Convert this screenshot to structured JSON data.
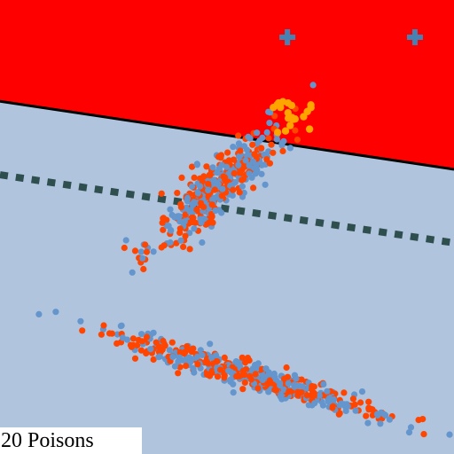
{
  "caption": "20 Poisons",
  "colors": {
    "positive_region": "#ff0000",
    "negative_region": "#b0c4de",
    "class_a": "#6495cd",
    "class_b": "#ff4500",
    "poison": "#ffa500",
    "target": "#4682b4",
    "clean_boundary": "#000000",
    "poisoned_boundary": "#2f4f4f"
  },
  "chart_data": {
    "type": "scatter",
    "title": "",
    "xlabel": "",
    "ylabel": "",
    "xlim": [
      0,
      1
    ],
    "ylim": [
      0,
      1
    ],
    "grid": false,
    "axes_visible": false,
    "regions": [
      {
        "name": "positive",
        "side": "above",
        "boundary": "clean_boundary",
        "color_key": "positive_region"
      },
      {
        "name": "negative",
        "side": "below",
        "boundary": "clean_boundary",
        "color_key": "negative_region"
      }
    ],
    "decision_boundaries": [
      {
        "id": "clean",
        "style": "solid",
        "points": [
          [
            0.0,
            0.777
          ],
          [
            1.0,
            0.627
          ]
        ],
        "color_key": "clean_boundary"
      },
      {
        "id": "poisoned",
        "style": "dotted",
        "points": [
          [
            0.0,
            0.615
          ],
          [
            1.0,
            0.465
          ]
        ],
        "color_key": "poisoned_boundary"
      }
    ],
    "targets": [
      {
        "x": 0.633,
        "y": 0.918,
        "marker": "plus"
      },
      {
        "x": 0.914,
        "y": 0.918,
        "marker": "plus"
      }
    ],
    "clusters": [
      {
        "id": "upper",
        "center": [
          0.48,
          0.59
        ],
        "direction": [
          0.73,
          0.68
        ],
        "length_sd": 0.095,
        "width_sd": 0.026,
        "count_per_class": 210
      },
      {
        "id": "lower",
        "center": [
          0.56,
          0.17
        ],
        "direction": [
          0.96,
          -0.28
        ],
        "length_sd": 0.17,
        "width_sd": 0.014,
        "count_per_class": 230
      }
    ],
    "series": [
      {
        "class": "class_a",
        "color_key": "class_a"
      },
      {
        "class": "class_b",
        "color_key": "class_b"
      }
    ],
    "poisons": {
      "count": 20,
      "color_key": "poison",
      "center": [
        0.63,
        0.75
      ],
      "sd": [
        0.03,
        0.025
      ]
    }
  }
}
